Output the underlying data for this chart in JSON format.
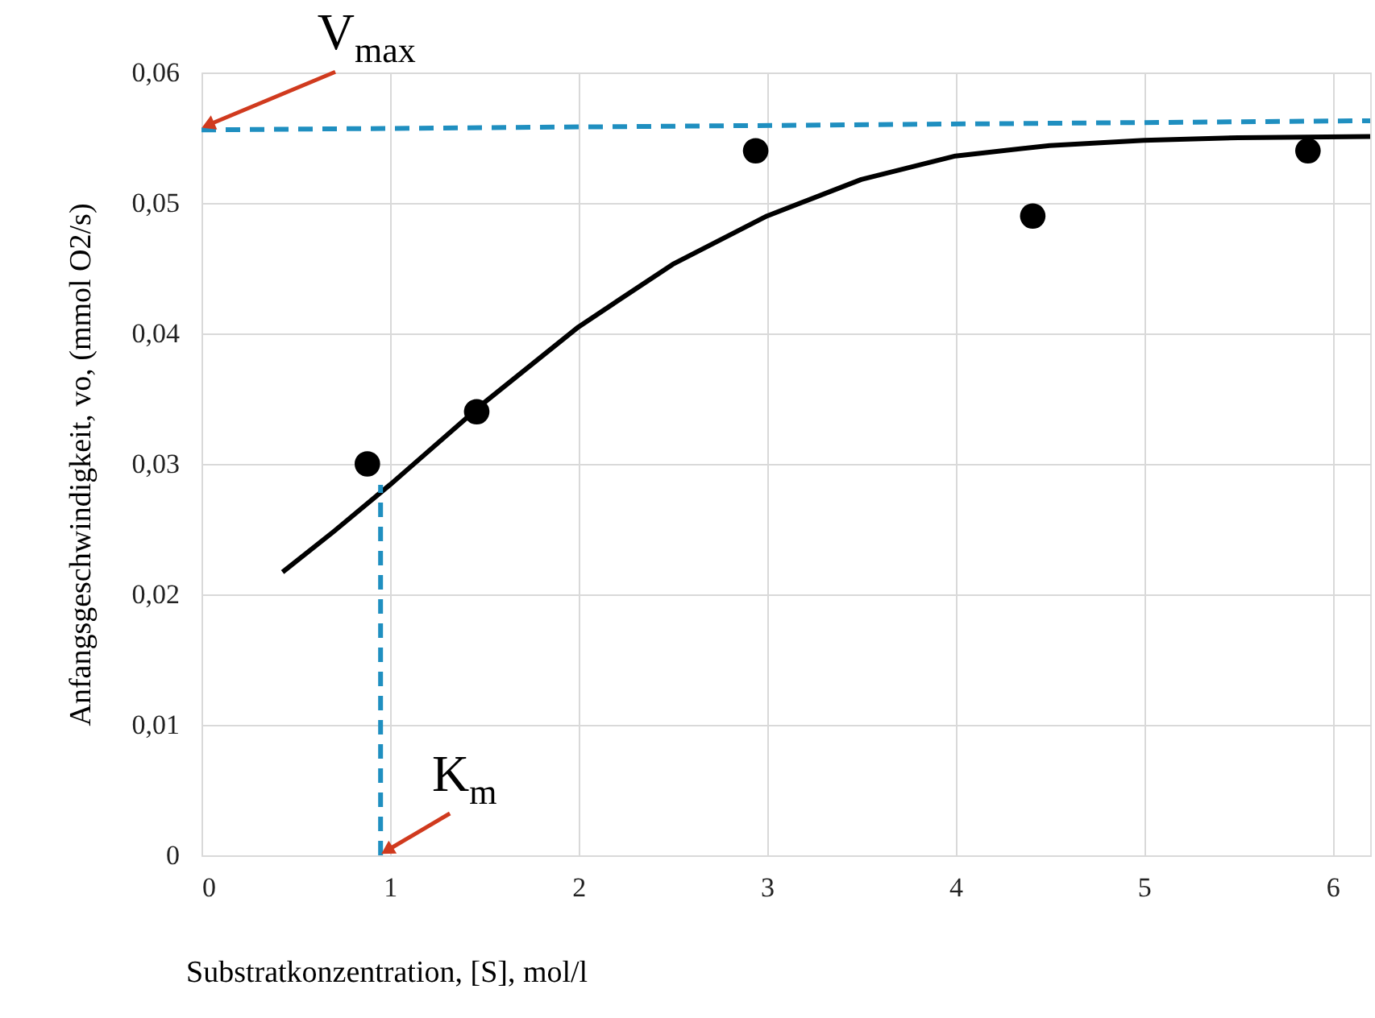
{
  "chart_data": {
    "type": "scatter",
    "xlabel": "Substratkonzentration, [S], mol/l",
    "ylabel": "Anfangsgeschwindigkeit, vo, (mmol O2/s)",
    "xlim": [
      0,
      6.2
    ],
    "xticks": [
      0,
      1,
      2,
      3,
      4,
      5,
      6
    ],
    "ylim": [
      0,
      0.06
    ],
    "yticks": [
      0,
      {
        "value": 0.01,
        "label": "0,01"
      },
      {
        "value": 0.02,
        "label": "0,02"
      },
      {
        "value": 0.03,
        "label": "0,03"
      },
      {
        "value": 0.04,
        "label": "0,04"
      },
      {
        "value": 0.05,
        "label": "0,05"
      },
      {
        "value": 0.06,
        "label": "0,06"
      }
    ],
    "grid": true,
    "marker": "circle",
    "series": [
      {
        "type": "scatter",
        "color": "#000000",
        "x": [
          0.88,
          1.46,
          2.94,
          4.41,
          5.87
        ],
        "values": [
          0.03,
          0.034,
          0.054,
          0.049,
          0.054
        ]
      },
      {
        "type": "line",
        "color": "#000000",
        "line_style": "solid",
        "marker": "none",
        "x": [
          0.43,
          0.7,
          1,
          1.5,
          2,
          2.5,
          3,
          3.5,
          4,
          4.5,
          5,
          5.5,
          6.2
        ],
        "values": [
          0.0217,
          0.0248,
          0.0284,
          0.0347,
          0.0405,
          0.0453,
          0.049,
          0.0518,
          0.0536,
          0.0544,
          0.0548,
          0.055,
          0.0551
        ]
      },
      {
        "type": "line",
        "color": "#1f8fc0",
        "line_style": "dashed",
        "marker": "none",
        "x": [
          0,
          6.2
        ],
        "values": [
          0.0556,
          0.0563
        ]
      },
      {
        "type": "line",
        "color": "#1f8fc0",
        "line_style": "dashed",
        "marker": "none",
        "x": [
          0.95,
          0.95
        ],
        "values": [
          0,
          0.0284
        ]
      }
    ],
    "annotations": [
      {
        "text": "V$_{max}$",
        "x": 0,
        "y": 0.0556
      },
      {
        "text": "K$_{m}$",
        "x": 0.95,
        "y": 0
      }
    ]
  }
}
